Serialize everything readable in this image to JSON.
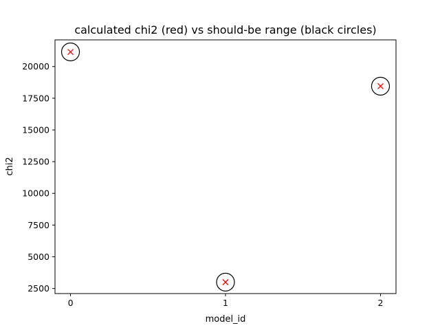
{
  "chart_data": {
    "type": "scatter",
    "title": "calculated chi2 (red) vs should-be range (black circles)",
    "xlabel": "model_id",
    "ylabel": "chi2",
    "x_ticks": [
      0,
      1,
      2
    ],
    "y_ticks": [
      2500,
      5000,
      7500,
      10000,
      12500,
      15000,
      17500,
      20000
    ],
    "xlim": [
      -0.1,
      2.1
    ],
    "ylim": [
      2100,
      22100
    ],
    "grid": false,
    "series": [
      {
        "marker": "circle",
        "color": "#000000",
        "x": [
          0,
          1,
          2
        ],
        "y": [
          21150,
          3000,
          18450
        ]
      },
      {
        "marker": "x",
        "color": "#ff0000",
        "x": [
          0,
          1,
          2
        ],
        "y": [
          21150,
          3000,
          18450
        ]
      }
    ]
  }
}
